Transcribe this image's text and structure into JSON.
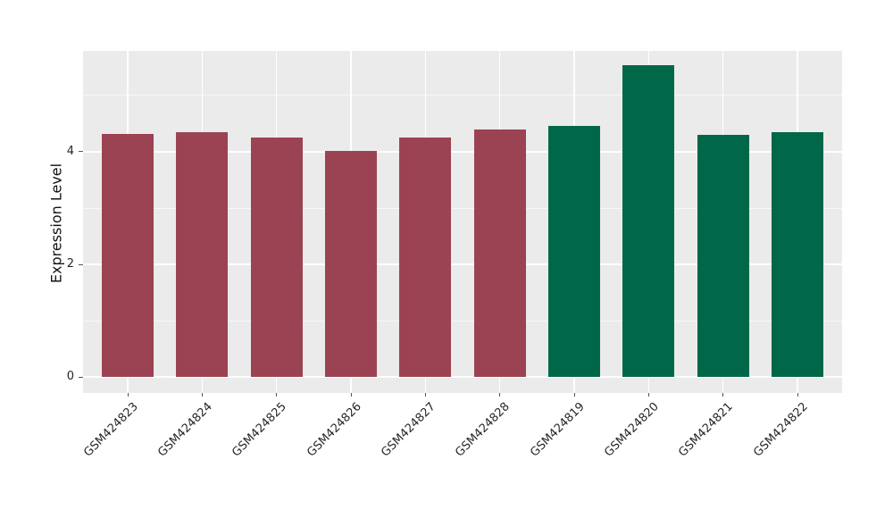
{
  "chart_data": {
    "type": "bar",
    "title": "",
    "xlabel": "",
    "ylabel": "Expression Level",
    "categories": [
      "GSM424823",
      "GSM424824",
      "GSM424825",
      "GSM424826",
      "GSM424827",
      "GSM424828",
      "GSM424819",
      "GSM424820",
      "GSM424821",
      "GSM424822"
    ],
    "values": [
      4.32,
      4.35,
      4.26,
      4.02,
      4.26,
      4.4,
      4.46,
      5.53,
      4.3,
      4.35
    ],
    "bar_colors": [
      "#9B4352",
      "#9B4352",
      "#9B4352",
      "#9B4352",
      "#9B4352",
      "#9B4352",
      "#016749",
      "#016749",
      "#016749",
      "#016749"
    ],
    "groups": [
      {
        "name": "maroon-group",
        "color": "#9B4352",
        "members": [
          "GSM424823",
          "GSM424824",
          "GSM424825",
          "GSM424826",
          "GSM424827",
          "GSM424828"
        ]
      },
      {
        "name": "green-group",
        "color": "#016749",
        "members": [
          "GSM424819",
          "GSM424820",
          "GSM424821",
          "GSM424822"
        ]
      }
    ],
    "y_ticks": [
      0,
      2,
      4
    ],
    "y_tick_labels": [
      "0",
      "2",
      "4"
    ],
    "y_minor_gridlines": [
      1,
      3,
      5
    ],
    "ylim": [
      -0.28,
      5.79
    ],
    "xlim": [
      0.4,
      10.6
    ],
    "bar_width": 0.7,
    "x_tick_rotation_deg": 45,
    "grid": true,
    "legend": "none",
    "style": {
      "panel_bg": "#EBEBEB",
      "grid_color": "#FFFFFF",
      "text_color": "#262626",
      "tick_color": "#555555",
      "page_bg": "#FFFFFF"
    }
  }
}
